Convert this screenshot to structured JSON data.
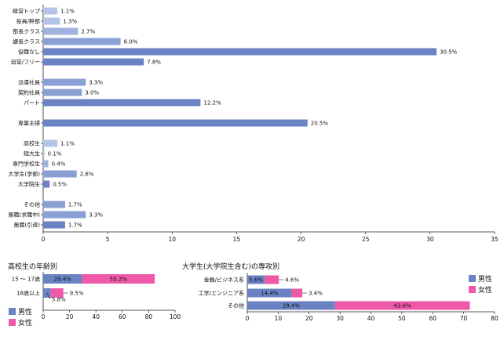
{
  "chart_data": [
    {
      "type": "bar",
      "orientation": "horizontal",
      "groups": [
        [
          {
            "label": "経営トップ",
            "value": 1.1,
            "value_label": "1.1%",
            "color": "#b3c4e6"
          },
          {
            "label": "役員/幹部",
            "value": 1.3,
            "value_label": "1.3%",
            "color": "#b3c4e6"
          },
          {
            "label": "部長クラス",
            "value": 2.7,
            "value_label": "2.7%",
            "color": "#9fb3dd"
          },
          {
            "label": "課長クラス",
            "value": 6.0,
            "value_label": "6.0%",
            "color": "#8aa0d4"
          },
          {
            "label": "役職なし",
            "value": 30.5,
            "value_label": "30.5%",
            "color": "#6b82c3"
          },
          {
            "label": "自営/フリー",
            "value": 7.8,
            "value_label": "7.8%",
            "color": "#6b82c3"
          }
        ],
        [
          {
            "label": "派遣社員",
            "value": 3.3,
            "value_label": "3.3%",
            "color": "#8aa0d4"
          },
          {
            "label": "契約社員",
            "value": 3.0,
            "value_label": "3.0%",
            "color": "#8aa0d4"
          },
          {
            "label": "パート",
            "value": 12.2,
            "value_label": "12.2%",
            "color": "#6b82c3"
          }
        ],
        [
          {
            "label": "専業主婦",
            "value": 20.5,
            "value_label": "20.5%",
            "color": "#6b82c3"
          }
        ],
        [
          {
            "label": "高校生",
            "value": 1.1,
            "value_label": "1.1%",
            "color": "#b3c4e6"
          },
          {
            "label": "短大生",
            "value": 0.1,
            "value_label": "0.1%",
            "color": "#b3c4e6"
          },
          {
            "label": "専門学校生",
            "value": 0.4,
            "value_label": "0.4%",
            "color": "#9fb3dd"
          },
          {
            "label": "大学生(学部)",
            "value": 2.6,
            "value_label": "2.6%",
            "color": "#8aa0d4"
          },
          {
            "label": "大学院生",
            "value": 0.5,
            "value_label": "0.5%",
            "color": "#6b82c3"
          }
        ],
        [
          {
            "label": "その他",
            "value": 1.7,
            "value_label": "1.7%",
            "color": "#8aa0d4"
          },
          {
            "label": "無職(求職中)",
            "value": 3.3,
            "value_label": "3.3%",
            "color": "#8aa0d4"
          },
          {
            "label": "無職(引退)",
            "value": 1.7,
            "value_label": "1.7%",
            "color": "#6b82c3"
          }
        ]
      ],
      "xlim": [
        0,
        35
      ],
      "xticks": [
        "0",
        "5",
        "10",
        "15",
        "20",
        "25",
        "30",
        "35"
      ]
    },
    {
      "type": "bar",
      "stacked": true,
      "orientation": "horizontal",
      "title": "高校生の年齢別",
      "categories": [
        "15 ～ 17歳",
        "18歳以上"
      ],
      "series": [
        {
          "name": "男性",
          "color": "#6b82c3",
          "values": [
            29.4,
            5.8
          ],
          "labels": [
            "29.4%",
            "5.8%"
          ]
        },
        {
          "name": "女性",
          "color": "#ee5aa8",
          "values": [
            55.2,
            9.5
          ],
          "labels": [
            "55.2%",
            "9.5%"
          ]
        }
      ],
      "xlim": [
        0,
        100
      ],
      "xticks": [
        "0",
        "20",
        "40",
        "60",
        "80",
        "100"
      ],
      "legend": "bottom-left"
    },
    {
      "type": "bar",
      "stacked": true,
      "orientation": "horizontal",
      "title": "大学生(大学院生含む)の専攻別",
      "categories": [
        "金融/ビジネス系",
        "工学/エンジニア系",
        "その他"
      ],
      "series": [
        {
          "name": "男性",
          "color": "#6b82c3",
          "values": [
            5.6,
            14.4,
            28.4
          ],
          "labels": [
            "5.6%",
            "14.4%",
            "28.4%"
          ]
        },
        {
          "name": "女性",
          "color": "#ee5aa8",
          "values": [
            4.6,
            3.4,
            43.6
          ],
          "labels": [
            "4.6%",
            "3.4%",
            "43.6%"
          ]
        }
      ],
      "xlim": [
        0,
        80
      ],
      "xticks": [
        "0",
        "10",
        "20",
        "30",
        "40",
        "50",
        "60",
        "70",
        "80"
      ],
      "legend": "top-right"
    }
  ]
}
